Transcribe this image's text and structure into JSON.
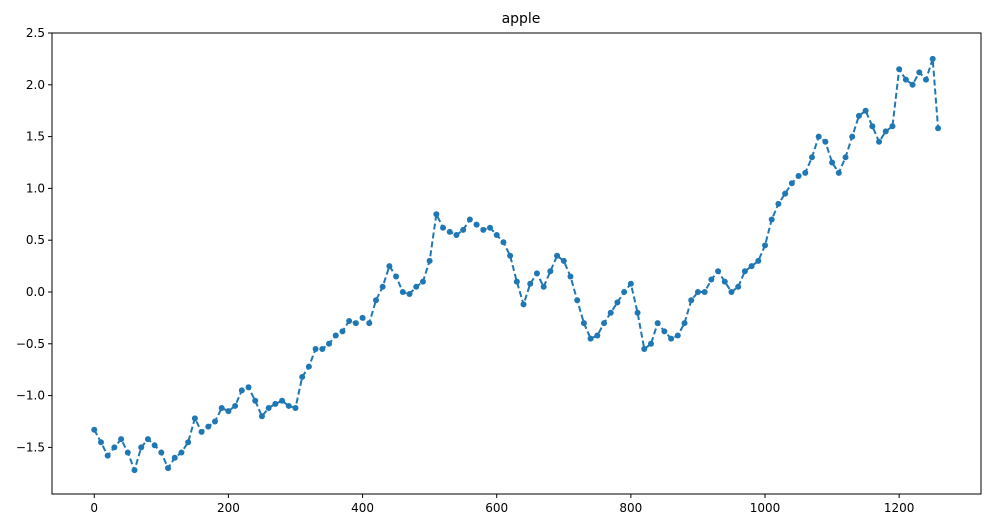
{
  "chart_data": {
    "type": "line",
    "title": "apple",
    "xlabel": "",
    "ylabel": "",
    "xlim": [
      -63,
      1322
    ],
    "ylim": [
      -1.95,
      2.5
    ],
    "xticks": [
      0,
      200,
      400,
      600,
      800,
      1000,
      1200
    ],
    "xtick_labels": [
      "0",
      "200",
      "400",
      "600",
      "800",
      "1000",
      "1200"
    ],
    "yticks": [
      -1.5,
      -1.0,
      -0.5,
      0.0,
      0.5,
      1.0,
      1.5,
      2.0,
      2.5
    ],
    "ytick_labels": [
      "−1.5",
      "−1.0",
      "−0.5",
      "0.0",
      "0.5",
      "1.0",
      "1.5",
      "2.0",
      "2.5"
    ],
    "grid": false,
    "legend": "none",
    "series": [
      {
        "color": "#1f77b4",
        "line_style": "dashed",
        "marker": "circle",
        "x": [
          0,
          10,
          20,
          30,
          40,
          50,
          60,
          70,
          80,
          90,
          100,
          110,
          120,
          130,
          140,
          150,
          160,
          170,
          180,
          190,
          200,
          210,
          220,
          230,
          240,
          250,
          260,
          270,
          280,
          290,
          300,
          310,
          320,
          330,
          340,
          350,
          360,
          370,
          380,
          390,
          400,
          410,
          420,
          430,
          440,
          450,
          460,
          470,
          480,
          490,
          500,
          510,
          520,
          530,
          540,
          550,
          560,
          570,
          580,
          590,
          600,
          610,
          620,
          630,
          640,
          650,
          660,
          670,
          680,
          690,
          700,
          710,
          720,
          730,
          740,
          750,
          760,
          770,
          780,
          790,
          800,
          810,
          820,
          830,
          840,
          850,
          860,
          870,
          880,
          890,
          900,
          910,
          920,
          930,
          940,
          950,
          960,
          970,
          980,
          990,
          1000,
          1010,
          1020,
          1030,
          1040,
          1050,
          1060,
          1070,
          1080,
          1090,
          1100,
          1110,
          1120,
          1130,
          1140,
          1150,
          1160,
          1170,
          1180,
          1190,
          1200,
          1210,
          1220,
          1230,
          1240,
          1250,
          1258
        ],
        "y": [
          -1.33,
          -1.45,
          -1.58,
          -1.5,
          -1.42,
          -1.55,
          -1.72,
          -1.5,
          -1.42,
          -1.48,
          -1.55,
          -1.7,
          -1.6,
          -1.55,
          -1.45,
          -1.22,
          -1.35,
          -1.3,
          -1.25,
          -1.12,
          -1.15,
          -1.1,
          -0.95,
          -0.92,
          -1.05,
          -1.2,
          -1.12,
          -1.08,
          -1.05,
          -1.1,
          -1.12,
          -0.82,
          -0.72,
          -0.55,
          -0.55,
          -0.5,
          -0.42,
          -0.38,
          -0.28,
          -0.3,
          -0.25,
          -0.3,
          -0.08,
          0.05,
          0.25,
          0.15,
          0.0,
          -0.02,
          0.05,
          0.1,
          0.3,
          0.75,
          0.62,
          0.58,
          0.55,
          0.6,
          0.7,
          0.65,
          0.6,
          0.62,
          0.55,
          0.48,
          0.35,
          0.1,
          -0.12,
          0.08,
          0.18,
          0.05,
          0.2,
          0.35,
          0.3,
          0.15,
          -0.08,
          -0.3,
          -0.45,
          -0.42,
          -0.3,
          -0.2,
          -0.1,
          0.0,
          0.08,
          -0.2,
          -0.55,
          -0.5,
          -0.3,
          -0.38,
          -0.45,
          -0.42,
          -0.3,
          -0.08,
          0.0,
          0.0,
          0.12,
          0.2,
          0.1,
          0.0,
          0.05,
          0.2,
          0.25,
          0.3,
          0.45,
          0.7,
          0.85,
          0.95,
          1.05,
          1.12,
          1.15,
          1.3,
          1.5,
          1.45,
          1.25,
          1.15,
          1.3,
          1.5,
          1.7,
          1.75,
          1.6,
          1.45,
          1.55,
          1.6,
          2.15,
          2.05,
          2.0,
          2.12,
          2.05,
          2.25,
          1.58
        ]
      }
    ]
  }
}
